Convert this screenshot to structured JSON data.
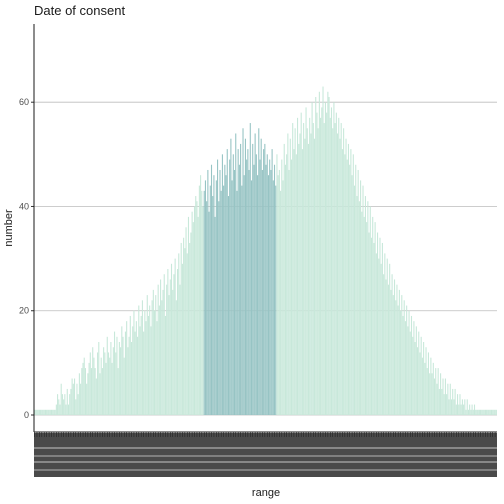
{
  "chart_data": {
    "type": "bar",
    "title": "Date of consent",
    "xlabel": "range",
    "ylabel": "number",
    "ylim": [
      0,
      75
    ],
    "yticks": [
      0,
      20,
      40,
      60
    ],
    "grid": "horizontal major",
    "legend": "none",
    "n_bars": 380,
    "highlight_range": [
      140,
      200
    ],
    "colors": {
      "bar": "#c8e8da",
      "highlight": "#97c4c4",
      "grid": "#bdbdbd",
      "axis": "#1a1a1a"
    },
    "values": [
      1,
      1,
      1,
      1,
      1,
      1,
      1,
      1,
      1,
      1,
      1,
      1,
      1,
      1,
      1,
      1,
      1,
      1,
      2,
      4,
      3,
      2,
      6,
      4,
      3,
      4,
      2,
      5,
      2,
      4,
      5,
      7,
      6,
      7,
      3,
      6,
      4,
      8,
      6,
      9,
      10,
      11,
      9,
      6,
      8,
      10,
      12,
      9,
      13,
      11,
      9,
      7,
      12,
      14,
      8,
      11,
      9,
      13,
      12,
      10,
      15,
      12,
      11,
      14,
      10,
      13,
      16,
      12,
      15,
      9,
      14,
      13,
      17,
      15,
      11,
      16,
      18,
      13,
      15,
      19,
      14,
      17,
      20,
      16,
      18,
      15,
      21,
      17,
      19,
      22,
      16,
      20,
      18,
      23,
      19,
      21,
      17,
      22,
      24,
      20,
      23,
      18,
      25,
      21,
      26,
      22,
      24,
      27,
      19,
      25,
      28,
      23,
      26,
      29,
      24,
      27,
      30,
      22,
      28,
      31,
      25,
      33,
      29,
      34,
      32,
      36,
      31,
      38,
      33,
      35,
      39,
      37,
      40,
      42,
      41,
      38,
      44,
      46,
      43,
      40,
      43,
      45,
      41,
      47,
      39,
      44,
      48,
      42,
      46,
      38,
      45,
      49,
      41,
      47,
      43,
      50,
      44,
      48,
      46,
      51,
      42,
      49,
      53,
      45,
      50,
      47,
      54,
      43,
      51,
      48,
      52,
      44,
      55,
      46,
      53,
      49,
      51,
      47,
      56,
      45,
      52,
      48,
      54,
      50,
      46,
      55,
      49,
      53,
      47,
      51,
      52,
      48,
      50,
      46,
      49,
      47,
      51,
      45,
      48,
      44,
      50,
      46,
      47,
      43,
      49,
      45,
      52,
      48,
      50,
      54,
      47,
      53,
      49,
      56,
      51,
      55,
      50,
      57,
      52,
      54,
      58,
      51,
      56,
      53,
      59,
      55,
      52,
      57,
      54,
      60,
      56,
      53,
      61,
      58,
      55,
      62,
      57,
      59,
      63,
      56,
      60,
      58,
      62,
      61,
      57,
      59,
      55,
      60,
      56,
      58,
      54,
      57,
      53,
      56,
      51,
      55,
      50,
      53,
      49,
      52,
      48,
      51,
      46,
      50,
      44,
      48,
      42,
      47,
      41,
      45,
      39,
      44,
      38,
      42,
      37,
      41,
      35,
      40,
      34,
      38,
      33,
      37,
      31,
      35,
      30,
      34,
      29,
      33,
      27,
      31,
      26,
      30,
      25,
      29,
      24,
      27,
      23,
      26,
      22,
      25,
      21,
      24,
      20,
      23,
      19,
      22,
      18,
      21,
      17,
      20,
      16,
      19,
      15,
      18,
      14,
      17,
      13,
      16,
      12,
      15,
      11,
      14,
      10,
      13,
      9,
      12,
      8,
      11,
      8,
      10,
      7,
      9,
      6,
      9,
      5,
      8,
      5,
      7,
      4,
      7,
      4,
      6,
      3,
      6,
      3,
      5,
      3,
      5,
      2,
      4,
      2,
      4,
      2,
      3,
      2,
      3,
      1,
      3,
      1,
      2,
      1,
      2,
      1,
      2,
      1,
      1,
      1,
      1,
      1,
      1,
      1,
      1,
      1,
      1,
      1,
      1,
      1,
      1,
      1,
      1,
      1,
      1
    ]
  }
}
